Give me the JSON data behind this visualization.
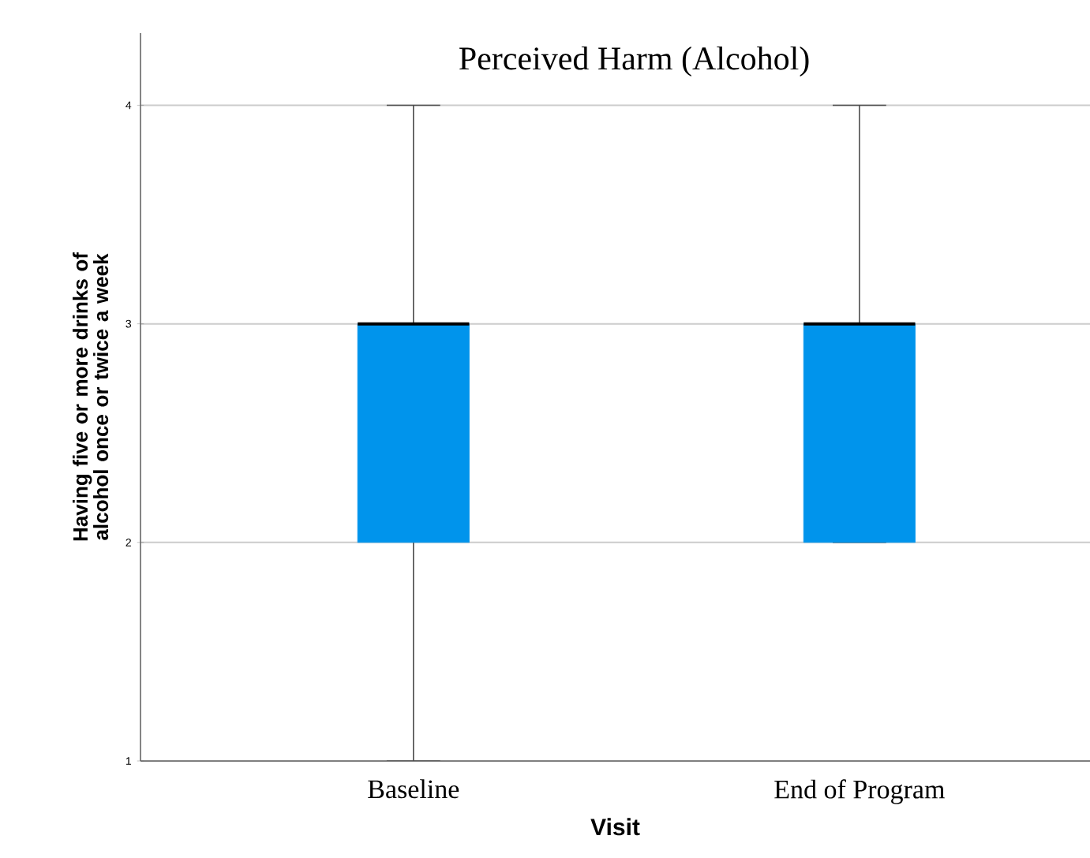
{
  "chart_data": {
    "type": "box",
    "title": "Perceived Harm (Alcohol)",
    "xlabel": "Visit",
    "ylabel": "Having five or more drinks of alcohol once or twice a week",
    "categories": [
      "Baseline",
      "End of Program"
    ],
    "boxes": [
      {
        "low": 1,
        "q1": 2,
        "median": 3,
        "q3": 3,
        "high": 4
      },
      {
        "low": 2,
        "q1": 2,
        "median": 3,
        "q3": 3,
        "high": 4
      }
    ],
    "color": "#0094ec",
    "ylim": [
      1,
      4.33
    ],
    "yticks": [
      1,
      2,
      3,
      4
    ],
    "grid": "y"
  }
}
